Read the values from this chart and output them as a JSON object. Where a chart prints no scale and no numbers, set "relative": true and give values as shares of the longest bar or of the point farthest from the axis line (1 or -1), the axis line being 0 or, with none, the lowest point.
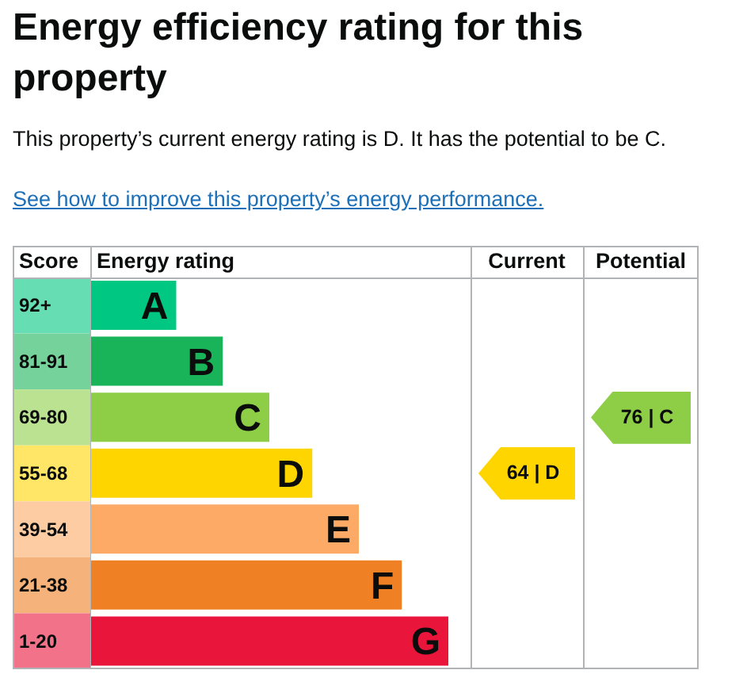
{
  "chart_data": {
    "type": "bar",
    "orientation": "horizontal",
    "relative": true,
    "title": "Energy efficiency rating for this property",
    "subtitle": "This property’s current energy rating is D. It has the potential to be C.",
    "ylabel": "Score",
    "xlabel": "Energy rating",
    "categories": [
      "92+",
      "81-91",
      "69-80",
      "55-68",
      "39-54",
      "21-38",
      "1-20"
    ],
    "values": [
      0.24,
      0.37,
      0.5,
      0.62,
      0.75,
      0.87,
      1
    ],
    "colors": [
      "#00c781",
      "#19b459",
      "#8dce46",
      "#ffd500",
      "#fcaa65",
      "#ef8023",
      "#e9153b"
    ],
    "annotations": [
      "See how to improve this property’s energy performance.",
      "Current",
      "Potential",
      "64 | D",
      "76 | C",
      {
        "text": "A",
        "y": "92+"
      },
      {
        "text": "B",
        "y": "81-91"
      },
      {
        "text": "C",
        "y": "69-80"
      },
      {
        "text": "D",
        "y": "55-68"
      },
      {
        "text": "E",
        "y": "39-54"
      },
      {
        "text": "F",
        "y": "21-38"
      },
      {
        "text": "G",
        "y": "1-20"
      }
    ]
  }
}
